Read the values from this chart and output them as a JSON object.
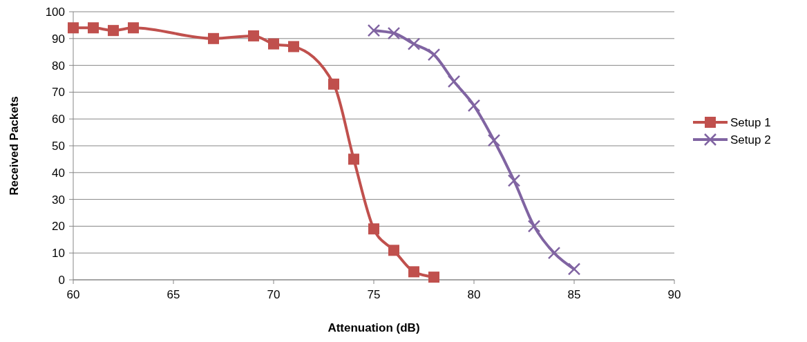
{
  "chart_data": {
    "type": "line",
    "xlabel": "Attenuation (dB)",
    "ylabel": "Received Packets",
    "xlim": [
      60,
      90
    ],
    "xticks": [
      60,
      65,
      70,
      75,
      80,
      85,
      90
    ],
    "ylim": [
      0,
      100
    ],
    "yticks": [
      0,
      10,
      20,
      30,
      40,
      50,
      60,
      70,
      80,
      90,
      100
    ],
    "grid": "y",
    "legend": "right",
    "line_style": "solid",
    "series": [
      {
        "name": "Setup 1",
        "color": "#c0504d",
        "marker": "square",
        "x": [
          60,
          61,
          62,
          63,
          67,
          69,
          70,
          71,
          73,
          74,
          75,
          76,
          77,
          78
        ],
        "values": [
          94,
          94,
          93,
          94,
          90,
          91,
          88,
          87,
          73,
          45,
          19,
          11,
          3,
          1
        ]
      },
      {
        "name": "Setup 2",
        "color": "#8064a2",
        "marker": "cross",
        "x": [
          75,
          76,
          77,
          78,
          79,
          80,
          81,
          82,
          83,
          84,
          85
        ],
        "values": [
          93,
          92,
          88,
          84,
          74,
          65,
          52,
          37,
          20,
          10,
          4
        ]
      }
    ]
  }
}
